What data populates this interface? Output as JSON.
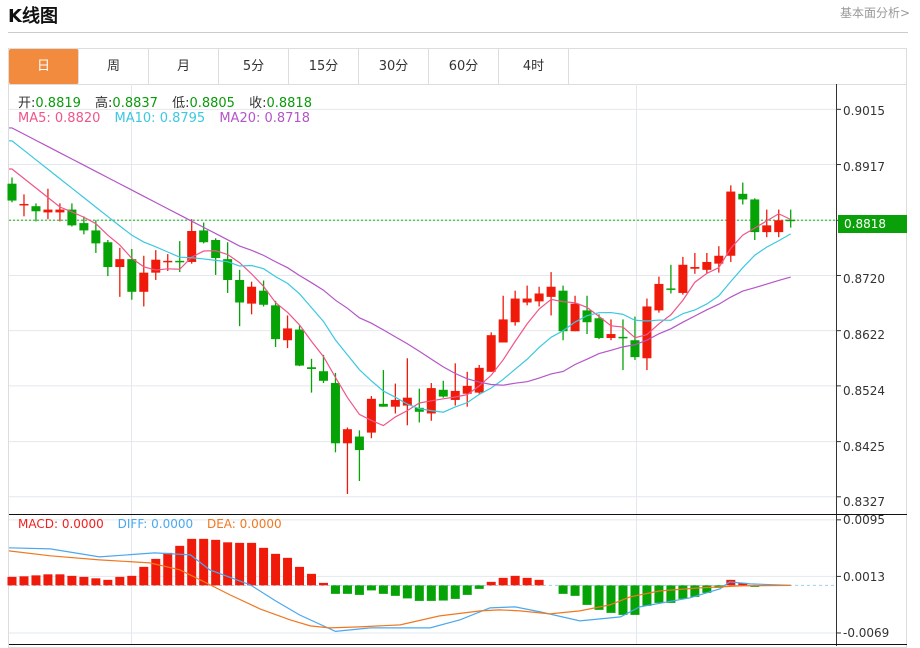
{
  "header": {
    "title": "K线图",
    "link": "基本面分析>"
  },
  "tabs": [
    {
      "label": "日",
      "active": true
    },
    {
      "label": "周"
    },
    {
      "label": "月"
    },
    {
      "label": "5分"
    },
    {
      "label": "15分"
    },
    {
      "label": "30分"
    },
    {
      "label": "60分"
    },
    {
      "label": "4时"
    }
  ],
  "ohlc_info": {
    "open_label": "开:",
    "open": "0.8819",
    "high_label": "高:",
    "high": "0.8837",
    "low_label": "低:",
    "low": "0.8805",
    "close_label": "收:",
    "close": "0.8818"
  },
  "ma_info": {
    "ma5": "MA5: 0.8820",
    "ma10": "MA10: 0.8795",
    "ma20": "MA20: 0.8718"
  },
  "macd_info": {
    "macd": "MACD: 0.0000",
    "diff": "DIFF: 0.0000",
    "dea": "DEA: 0.0000"
  },
  "current_price": "0.8818",
  "colors": {
    "up": "#f01a0a",
    "down": "#06a306",
    "ma5": "#f0558a",
    "ma10": "#3cc8e0",
    "ma20": "#b455c8",
    "diff": "#4aa8f0",
    "dea": "#f07820",
    "accent": "#f28b3d"
  },
  "chart_data": {
    "type": "candlestick",
    "price_axis": {
      "ticks": [
        "0.9015",
        "0.8917",
        "0.8818",
        "0.8720",
        "0.8622",
        "0.8524",
        "0.8425",
        "0.8327"
      ],
      "ylim": [
        0.83,
        0.906
      ]
    },
    "macd_axis": {
      "ticks": [
        "0.0095",
        "0.0013",
        "-0.0069"
      ],
      "ylim": [
        -0.0085,
        0.0102
      ]
    },
    "ma_initial": {
      "ma5": 0.8909,
      "ma10": 0.8959,
      "ma20": 0.8982
    },
    "candles": [
      [
        0.8883,
        0.8894,
        0.885,
        0.8853
      ],
      [
        0.8845,
        0.8864,
        0.8825,
        0.8847
      ],
      [
        0.8843,
        0.8848,
        0.8816,
        0.8834
      ],
      [
        0.8832,
        0.8874,
        0.882,
        0.8837
      ],
      [
        0.8832,
        0.8848,
        0.8816,
        0.8837
      ],
      [
        0.8837,
        0.8848,
        0.8807,
        0.8809
      ],
      [
        0.8813,
        0.8825,
        0.8793,
        0.88
      ],
      [
        0.88,
        0.8818,
        0.876,
        0.8777
      ],
      [
        0.8779,
        0.8783,
        0.8719,
        0.8735
      ],
      [
        0.8735,
        0.8769,
        0.8682,
        0.8749
      ],
      [
        0.8749,
        0.8767,
        0.8677,
        0.8691
      ],
      [
        0.8691,
        0.8755,
        0.8665,
        0.8725
      ],
      [
        0.8725,
        0.8765,
        0.8712,
        0.8748
      ],
      [
        0.8745,
        0.8758,
        0.8728,
        0.8746
      ],
      [
        0.8746,
        0.8781,
        0.8726,
        0.8745
      ],
      [
        0.8744,
        0.882,
        0.8741,
        0.8799
      ],
      [
        0.88,
        0.8814,
        0.8777,
        0.8779
      ],
      [
        0.8783,
        0.8786,
        0.8721,
        0.8751
      ],
      [
        0.8749,
        0.8779,
        0.8689,
        0.8712
      ],
      [
        0.8712,
        0.873,
        0.863,
        0.8672
      ],
      [
        0.867,
        0.8709,
        0.8651,
        0.87
      ],
      [
        0.8693,
        0.8711,
        0.8665,
        0.8668
      ],
      [
        0.8667,
        0.8675,
        0.8593,
        0.8607
      ],
      [
        0.8605,
        0.8649,
        0.8591,
        0.8626
      ],
      [
        0.8624,
        0.8631,
        0.8559,
        0.856
      ],
      [
        0.8557,
        0.8572,
        0.8512,
        0.8554
      ],
      [
        0.855,
        0.8579,
        0.8529,
        0.8533
      ],
      [
        0.8529,
        0.8547,
        0.8406,
        0.8422
      ],
      [
        0.8422,
        0.845,
        0.8332,
        0.8447
      ],
      [
        0.8434,
        0.8445,
        0.8355,
        0.841
      ],
      [
        0.8441,
        0.8506,
        0.8431,
        0.8501
      ],
      [
        0.8492,
        0.8552,
        0.8487,
        0.8487
      ],
      [
        0.8487,
        0.8528,
        0.8475,
        0.8499
      ],
      [
        0.8489,
        0.8573,
        0.8454,
        0.8503
      ],
      [
        0.8485,
        0.8519,
        0.8459,
        0.8478
      ],
      [
        0.8475,
        0.8529,
        0.8462,
        0.852
      ],
      [
        0.8517,
        0.8533,
        0.8503,
        0.8505
      ],
      [
        0.8499,
        0.8564,
        0.8489,
        0.8515
      ],
      [
        0.851,
        0.8549,
        0.8487,
        0.8524
      ],
      [
        0.8512,
        0.8561,
        0.851,
        0.8556
      ],
      [
        0.8549,
        0.8619,
        0.8549,
        0.8614
      ],
      [
        0.8601,
        0.8684,
        0.8601,
        0.8642
      ],
      [
        0.8637,
        0.8693,
        0.8631,
        0.8679
      ],
      [
        0.8672,
        0.8702,
        0.8667,
        0.8679
      ],
      [
        0.8674,
        0.87,
        0.8665,
        0.8688
      ],
      [
        0.8682,
        0.8726,
        0.8649,
        0.87
      ],
      [
        0.8693,
        0.8702,
        0.8605,
        0.8621
      ],
      [
        0.8621,
        0.8684,
        0.8621,
        0.867
      ],
      [
        0.8658,
        0.8684,
        0.8616,
        0.8637
      ],
      [
        0.8644,
        0.8651,
        0.8607,
        0.8609
      ],
      [
        0.8609,
        0.8642,
        0.8605,
        0.8616
      ],
      [
        0.8611,
        0.8642,
        0.8552,
        0.861
      ],
      [
        0.8605,
        0.8647,
        0.857,
        0.8575
      ],
      [
        0.8573,
        0.8679,
        0.8552,
        0.8665
      ],
      [
        0.8658,
        0.8718,
        0.8654,
        0.8705
      ],
      [
        0.8697,
        0.8739,
        0.8688,
        0.8696
      ],
      [
        0.8689,
        0.8753,
        0.8686,
        0.8739
      ],
      [
        0.8732,
        0.876,
        0.8723,
        0.8735
      ],
      [
        0.873,
        0.876,
        0.8723,
        0.8744
      ],
      [
        0.8741,
        0.8772,
        0.8725,
        0.8755
      ],
      [
        0.8755,
        0.888,
        0.8744,
        0.8869
      ],
      [
        0.8865,
        0.8885,
        0.8846,
        0.8855
      ],
      [
        0.8855,
        0.8857,
        0.8783,
        0.8797
      ],
      [
        0.8797,
        0.8837,
        0.8788,
        0.8809
      ],
      [
        0.8797,
        0.8837,
        0.8788,
        0.8818
      ],
      [
        0.8819,
        0.8837,
        0.8805,
        0.8818
      ]
    ],
    "macd_hist": [
      0.00123,
      0.00131,
      0.00145,
      0.0016,
      0.0016,
      0.00138,
      0.00123,
      0.00102,
      0.0008,
      0.00123,
      0.00138,
      0.00268,
      0.00384,
      0.00471,
      0.00573,
      0.00674,
      0.00674,
      0.0066,
      0.00624,
      0.00616,
      0.00616,
      0.00544,
      0.00457,
      0.00399,
      0.00268,
      0.00167,
      0.00036,
      -0.00123,
      -0.00123,
      -0.00138,
      -0.00073,
      -0.00123,
      -0.00152,
      -0.00189,
      -0.00225,
      -0.00225,
      -0.0022,
      -0.00196,
      -0.00138,
      -0.00051,
      0.00051,
      0.00109,
      0.00138,
      0.00109,
      0.0008,
      0.0,
      -0.00123,
      -0.00152,
      -0.00283,
      -0.00355,
      -0.00399,
      -0.00428,
      -0.00428,
      -0.00297,
      -0.00254,
      -0.00254,
      -0.00196,
      -0.00167,
      -0.00109,
      -0.00036,
      0.0008,
      0.00036,
      -0.00022,
      0.0,
      0.0,
      0.0
    ],
    "diff": [
      [
        -0.3,
        0.00544
      ],
      [
        3.2,
        0.00529
      ],
      [
        7.3,
        0.00413
      ],
      [
        11.9,
        0.00471
      ],
      [
        14.9,
        0.00442
      ],
      [
        16.5,
        0.00225
      ],
      [
        19.9,
        7e-05
      ],
      [
        22,
        -0.00225
      ],
      [
        24,
        -0.00428
      ],
      [
        27,
        -0.00667
      ],
      [
        29.9,
        -0.00616
      ],
      [
        34.9,
        -0.00616
      ],
      [
        37.4,
        -0.005
      ],
      [
        39.9,
        -0.00326
      ],
      [
        42,
        -0.00312
      ],
      [
        44.1,
        -0.00384
      ],
      [
        47.4,
        -0.00515
      ],
      [
        50.8,
        -0.00457
      ],
      [
        52.4,
        -0.00312
      ],
      [
        56.6,
        -0.00181
      ],
      [
        59.1,
        -0.00051
      ],
      [
        59.9,
        0.00051
      ],
      [
        61.6,
        0.00022
      ],
      [
        65,
        0.0
      ]
    ],
    "dea": [
      [
        -0.3,
        0.005
      ],
      [
        3.2,
        0.00428
      ],
      [
        7.3,
        0.0037
      ],
      [
        11.5,
        0.00326
      ],
      [
        14,
        0.00225
      ],
      [
        15.7,
        0.0008
      ],
      [
        18.2,
        -0.00138
      ],
      [
        20.7,
        -0.00341
      ],
      [
        23.2,
        -0.005
      ],
      [
        24.9,
        -0.00587
      ],
      [
        26.5,
        -0.00616
      ],
      [
        29,
        -0.00602
      ],
      [
        32.4,
        -0.00573
      ],
      [
        35.7,
        -0.00442
      ],
      [
        39.1,
        -0.0037
      ],
      [
        40.7,
        -0.00355
      ],
      [
        42.4,
        -0.0037
      ],
      [
        44.9,
        -0.00413
      ],
      [
        47.4,
        -0.0037
      ],
      [
        49.9,
        -0.00283
      ],
      [
        51.6,
        -0.00167
      ],
      [
        54.1,
        -0.0008
      ],
      [
        57.4,
        -0.00036
      ],
      [
        60.8,
        -7e-05
      ],
      [
        65,
        0.0
      ]
    ]
  }
}
